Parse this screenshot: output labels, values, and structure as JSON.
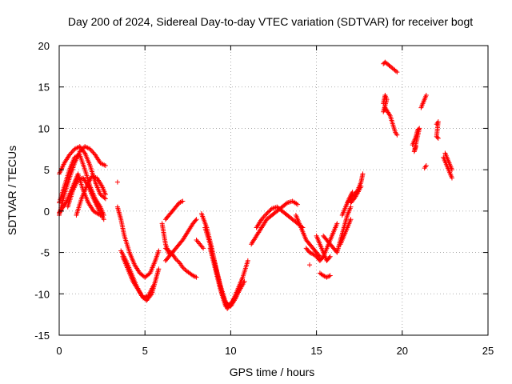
{
  "chart_data": {
    "type": "scatter",
    "title": "Day 200 of 2024, Sidereal Day-to-day VTEC variation (SDTVAR) for receiver bogt",
    "xlabel": "GPS time / hours",
    "ylabel": "SDTVAR / TECUs",
    "xlim": [
      0,
      25
    ],
    "ylim": [
      -15,
      20
    ],
    "xticks": [
      "0",
      "5",
      "10",
      "15",
      "20",
      "25"
    ],
    "yticks": [
      "-15",
      "-10",
      "-5",
      "0",
      "5",
      "10",
      "15",
      "20"
    ],
    "grid": true,
    "marker": "+",
    "color": "#ff0000",
    "series": [
      {
        "values": [
          [
            0.0,
            -0.5
          ],
          [
            0.3,
            2.0
          ],
          [
            0.6,
            4.0
          ],
          [
            0.9,
            5.8
          ],
          [
            1.2,
            7.2
          ],
          [
            1.5,
            7.8
          ],
          [
            1.8,
            7.5
          ],
          [
            2.1,
            6.8
          ],
          [
            2.4,
            5.8
          ],
          [
            2.7,
            5.5
          ]
        ]
      },
      {
        "values": [
          [
            0.0,
            4.5
          ],
          [
            0.3,
            5.8
          ],
          [
            0.6,
            6.8
          ],
          [
            0.9,
            7.5
          ],
          [
            1.2,
            7.8
          ],
          [
            1.5,
            7.0
          ],
          [
            1.8,
            5.5
          ],
          [
            2.1,
            3.5
          ],
          [
            2.4,
            2.0
          ],
          [
            2.7,
            1.5
          ]
        ]
      },
      {
        "values": [
          [
            0.0,
            1.0
          ],
          [
            0.3,
            3.0
          ],
          [
            0.6,
            5.0
          ],
          [
            0.9,
            6.5
          ],
          [
            1.2,
            6.8
          ],
          [
            1.5,
            5.0
          ],
          [
            1.8,
            3.0
          ],
          [
            2.1,
            1.5
          ],
          [
            2.4,
            0.5
          ],
          [
            2.6,
            -0.5
          ]
        ]
      },
      {
        "values": [
          [
            0.0,
            -0.2
          ],
          [
            0.4,
            1.0
          ],
          [
            0.8,
            3.0
          ],
          [
            1.1,
            4.5
          ],
          [
            1.4,
            2.5
          ],
          [
            1.7,
            1.0
          ],
          [
            2.0,
            0.0
          ],
          [
            2.4,
            -0.5
          ]
        ]
      },
      {
        "values": [
          [
            0.5,
            0.5
          ],
          [
            0.8,
            2.5
          ],
          [
            1.1,
            3.8
          ],
          [
            1.4,
            4.0
          ],
          [
            1.7,
            3.0
          ],
          [
            2.0,
            1.5
          ],
          [
            2.3,
            0.2
          ],
          [
            2.6,
            -1.0
          ]
        ]
      },
      {
        "values": [
          [
            1.0,
            -0.5
          ],
          [
            1.3,
            1.5
          ],
          [
            1.6,
            3.0
          ],
          [
            1.9,
            4.2
          ],
          [
            2.2,
            4.0
          ],
          [
            2.5,
            3.0
          ],
          [
            2.7,
            2.0
          ]
        ]
      },
      {
        "values": [
          [
            3.4,
            0.5
          ],
          [
            3.6,
            -1.0
          ],
          [
            3.8,
            -3.0
          ],
          [
            4.1,
            -5.0
          ],
          [
            4.4,
            -6.5
          ],
          [
            4.7,
            -7.5
          ],
          [
            5.0,
            -8.0
          ],
          [
            5.3,
            -7.5
          ],
          [
            5.6,
            -6.0
          ],
          [
            5.8,
            -4.8
          ]
        ]
      },
      {
        "values": [
          [
            3.6,
            -4.8
          ],
          [
            3.9,
            -6.0
          ],
          [
            4.2,
            -7.5
          ],
          [
            4.5,
            -9.0
          ],
          [
            4.8,
            -10.2
          ],
          [
            5.1,
            -10.8
          ],
          [
            5.4,
            -10.0
          ],
          [
            5.6,
            -8.5
          ],
          [
            5.8,
            -7.0
          ]
        ]
      },
      {
        "values": [
          [
            3.7,
            -5.5
          ],
          [
            4.0,
            -7.0
          ],
          [
            4.3,
            -8.5
          ],
          [
            4.6,
            -9.5
          ],
          [
            4.9,
            -10.5
          ],
          [
            5.2,
            -10.2
          ],
          [
            5.5,
            -9.0
          ]
        ]
      },
      {
        "values": [
          [
            6.2,
            -6.0
          ],
          [
            6.4,
            -5.5
          ],
          [
            6.6,
            -5.0
          ],
          [
            6.8,
            -4.5
          ],
          [
            7.0,
            -4.0
          ],
          [
            7.2,
            -3.5
          ],
          [
            7.5,
            -2.5
          ],
          [
            7.8,
            -1.5
          ],
          [
            8.0,
            -1.0
          ]
        ]
      },
      {
        "values": [
          [
            6.2,
            -4.5
          ],
          [
            6.4,
            -4.8
          ],
          [
            6.6,
            -5.2
          ],
          [
            6.8,
            -5.8
          ],
          [
            7.0,
            -6.2
          ],
          [
            7.2,
            -6.8
          ],
          [
            7.4,
            -7.2
          ],
          [
            7.8,
            -7.8
          ],
          [
            8.0,
            -8.0
          ]
        ]
      },
      {
        "values": [
          [
            6.2,
            -1.0
          ],
          [
            6.4,
            -0.5
          ],
          [
            6.6,
            0.0
          ],
          [
            6.8,
            0.5
          ],
          [
            7.0,
            1.0
          ],
          [
            7.2,
            1.2
          ]
        ]
      },
      {
        "values": [
          [
            6.0,
            -1.5
          ],
          [
            6.2,
            -4.0
          ],
          [
            6.4,
            -5.2
          ]
        ]
      },
      {
        "values": [
          [
            8.3,
            -0.3
          ],
          [
            8.6,
            -2.0
          ],
          [
            8.9,
            -4.5
          ],
          [
            9.2,
            -7.5
          ],
          [
            9.5,
            -10.0
          ],
          [
            9.8,
            -11.8
          ],
          [
            10.1,
            -11.0
          ],
          [
            10.4,
            -9.5
          ],
          [
            10.7,
            -8.0
          ],
          [
            11.0,
            -6.0
          ]
        ]
      },
      {
        "values": [
          [
            8.5,
            -2.0
          ],
          [
            8.8,
            -4.0
          ],
          [
            9.1,
            -6.5
          ],
          [
            9.4,
            -9.0
          ],
          [
            9.7,
            -11.0
          ],
          [
            10.0,
            -11.5
          ],
          [
            10.3,
            -10.5
          ],
          [
            10.6,
            -9.0
          ]
        ]
      },
      {
        "values": [
          [
            8.8,
            -4.5
          ],
          [
            9.1,
            -7.0
          ],
          [
            9.4,
            -9.5
          ],
          [
            9.7,
            -11.5
          ],
          [
            10.0,
            -11.2
          ],
          [
            10.4,
            -10.0
          ],
          [
            10.8,
            -8.5
          ]
        ]
      },
      {
        "values": [
          [
            8.0,
            -3.5
          ],
          [
            8.4,
            -4.5
          ]
        ]
      },
      {
        "values": [
          [
            11.2,
            -4.0
          ],
          [
            11.5,
            -3.0
          ],
          [
            11.8,
            -2.0
          ],
          [
            12.1,
            -1.0
          ],
          [
            12.4,
            -0.5
          ],
          [
            12.7,
            0.0
          ],
          [
            13.0,
            0.5
          ],
          [
            13.3,
            1.0
          ],
          [
            13.6,
            1.2
          ],
          [
            13.9,
            0.8
          ]
        ]
      },
      {
        "values": [
          [
            11.5,
            -2.0
          ],
          [
            11.8,
            -1.0
          ],
          [
            12.1,
            -0.3
          ],
          [
            12.4,
            0.3
          ],
          [
            12.7,
            0.5
          ],
          [
            13.0,
            0.0
          ],
          [
            13.3,
            -0.5
          ],
          [
            13.6,
            -1.0
          ],
          [
            13.9,
            -1.5
          ],
          [
            14.2,
            -2.0
          ]
        ]
      },
      {
        "values": [
          [
            13.8,
            -0.5
          ],
          [
            14.0,
            -1.5
          ],
          [
            14.2,
            -2.5
          ],
          [
            14.4,
            -3.5
          ],
          [
            14.6,
            -4.0
          ],
          [
            14.8,
            -4.5
          ],
          [
            15.0,
            -5.0
          ],
          [
            15.2,
            -5.5
          ]
        ]
      },
      {
        "values": [
          [
            14.4,
            -4.5
          ],
          [
            14.6,
            -5.0
          ],
          [
            14.8,
            -5.2
          ],
          [
            15.0,
            -5.5
          ],
          [
            15.2,
            -6.0
          ],
          [
            15.4,
            -5.5
          ],
          [
            15.6,
            -4.5
          ],
          [
            15.8,
            -3.5
          ],
          [
            16.0,
            -2.5
          ],
          [
            16.2,
            -1.5
          ]
        ]
      },
      {
        "values": [
          [
            15.4,
            -3.0
          ],
          [
            15.6,
            -3.5
          ],
          [
            15.8,
            -4.0
          ],
          [
            16.0,
            -4.5
          ],
          [
            16.2,
            -5.0
          ],
          [
            16.4,
            -3.5
          ],
          [
            16.6,
            -2.0
          ],
          [
            16.8,
            -0.5
          ],
          [
            17.0,
            0.5
          ]
        ]
      },
      {
        "values": [
          [
            15.0,
            -3.0
          ],
          [
            15.2,
            -4.0
          ],
          [
            15.4,
            -5.0
          ],
          [
            15.6,
            -6.0
          ],
          [
            15.8,
            -5.5
          ]
        ]
      },
      {
        "values": [
          [
            15.2,
            -7.5
          ],
          [
            15.4,
            -7.8
          ],
          [
            15.6,
            -8.0
          ],
          [
            15.8,
            -7.8
          ]
        ]
      },
      {
        "values": [
          [
            14.6,
            -6.5
          ]
        ]
      },
      {
        "values": [
          [
            16.4,
            -4.0
          ],
          [
            16.6,
            -3.0
          ],
          [
            16.8,
            -2.0
          ],
          [
            17.0,
            -1.0
          ]
        ]
      },
      {
        "values": [
          [
            16.8,
            1.0
          ],
          [
            17.0,
            1.5
          ],
          [
            17.2,
            2.0
          ],
          [
            17.4,
            2.5
          ],
          [
            17.6,
            3.5
          ],
          [
            17.7,
            4.5
          ]
        ]
      },
      {
        "values": [
          [
            17.0,
            1.0
          ],
          [
            17.2,
            1.5
          ],
          [
            17.4,
            2.2
          ],
          [
            17.6,
            3.0
          ]
        ]
      },
      {
        "values": [
          [
            16.5,
            -0.5
          ],
          [
            16.7,
            0.5
          ],
          [
            16.9,
            1.5
          ],
          [
            17.1,
            2.3
          ]
        ]
      },
      {
        "values": [
          [
            18.9,
            17.8
          ],
          [
            19.0,
            18.0
          ],
          [
            19.3,
            17.5
          ],
          [
            19.7,
            16.8
          ]
        ]
      },
      {
        "values": [
          [
            18.9,
            13.0
          ],
          [
            19.0,
            14.0
          ],
          [
            19.1,
            13.5
          ],
          [
            18.9,
            12.0
          ],
          [
            19.0,
            12.5
          ],
          [
            19.3,
            11.5
          ],
          [
            19.6,
            9.5
          ],
          [
            19.7,
            9.2
          ]
        ]
      },
      {
        "values": [
          [
            20.6,
            8.0
          ],
          [
            20.7,
            8.5
          ],
          [
            20.8,
            9.0
          ],
          [
            20.9,
            9.8
          ],
          [
            21.0,
            10.0
          ],
          [
            20.7,
            7.2
          ],
          [
            20.8,
            7.8
          ]
        ]
      },
      {
        "values": [
          [
            21.1,
            12.5
          ],
          [
            21.2,
            13.0
          ],
          [
            21.3,
            13.5
          ],
          [
            21.4,
            14.0
          ]
        ]
      },
      {
        "values": [
          [
            21.3,
            5.2
          ],
          [
            21.4,
            5.5
          ]
        ]
      },
      {
        "values": [
          [
            22.0,
            10.5
          ],
          [
            22.1,
            10.8
          ],
          [
            22.0,
            9.0
          ],
          [
            22.1,
            8.8
          ]
        ]
      },
      {
        "values": [
          [
            22.4,
            6.5
          ],
          [
            22.5,
            6.0
          ],
          [
            22.6,
            5.5
          ],
          [
            22.7,
            5.0
          ],
          [
            22.8,
            4.5
          ],
          [
            22.9,
            4.0
          ]
        ]
      },
      {
        "values": [
          [
            22.5,
            7.0
          ],
          [
            22.6,
            6.5
          ],
          [
            22.7,
            6.0
          ],
          [
            22.8,
            5.5
          ],
          [
            22.9,
            5.0
          ]
        ]
      },
      {
        "values": [
          [
            3.4,
            3.5
          ]
        ]
      }
    ]
  }
}
